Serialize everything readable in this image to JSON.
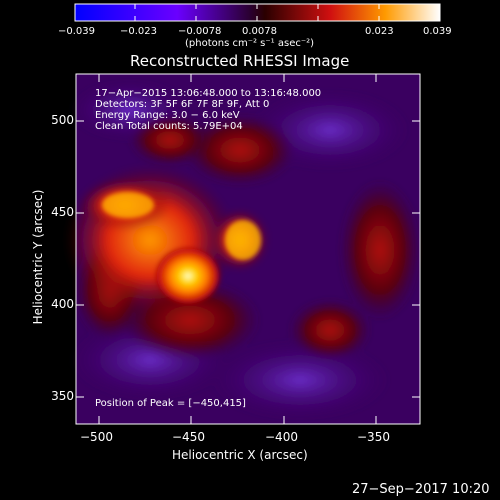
{
  "colorbar": {
    "ticks": [
      "−0.039",
      "−0.023",
      "−0.0078",
      "0.0078",
      "0.023",
      "0.039"
    ],
    "unit_label": "(photons cm⁻² s⁻¹ asec⁻²)"
  },
  "image": {
    "title": "Reconstructed RHESSI Image",
    "info_lines": [
      "17−Apr−2015 13:06:48.000 to 13:16:48.000",
      "Detectors: 3F 5F 6F 7F 8F 9F, Att 0",
      "Energy Range: 3.0 − 6.0 keV",
      "Clean     Total counts: 5.79E+04"
    ],
    "peak_text": "Position of Peak = [−450,415]"
  },
  "axes": {
    "xlabel": "Heliocentric X (arcsec)",
    "ylabel": "Heliocentric Y (arcsec)",
    "xticks": [
      "−500",
      "−450",
      "−400",
      "−350"
    ],
    "yticks": [
      "500",
      "450",
      "400",
      "350"
    ]
  },
  "footer": {
    "date": "27−Sep−2017 10:20"
  }
}
